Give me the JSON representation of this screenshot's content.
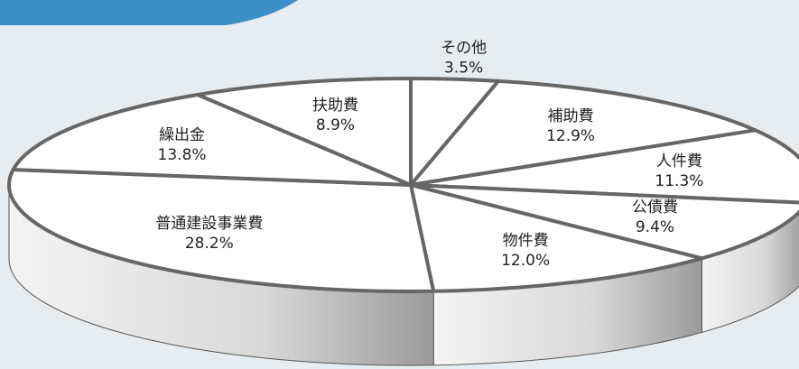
{
  "chart_data": {
    "type": "pie",
    "categories": [
      "その他",
      "補助費",
      "人件費",
      "公債費",
      "物件費",
      "普通建設事業費",
      "繰出金",
      "扶助費"
    ],
    "values": [
      3.5,
      12.9,
      11.3,
      9.4,
      12.0,
      28.2,
      13.8,
      8.9
    ],
    "value_labels": [
      "3.5%",
      "12.9%",
      "11.3%",
      "9.4%",
      "12.0%",
      "28.2%",
      "13.8%",
      "8.9%"
    ],
    "color": "#ffffff"
  }
}
